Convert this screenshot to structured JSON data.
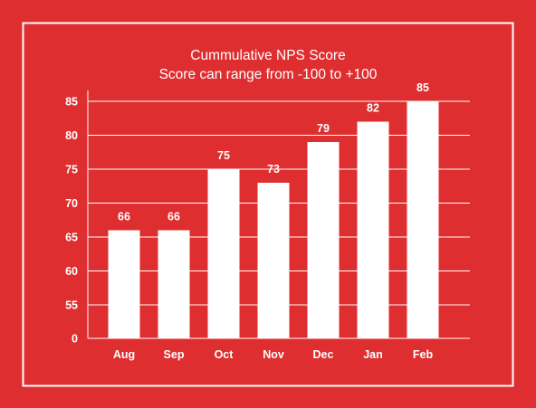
{
  "colors": {
    "background": "#de2e30",
    "foreground": "#ffffff"
  },
  "chart_data": {
    "type": "bar",
    "title": "Cummulative NPS Score",
    "subtitle": "Score can range from -100 to +100",
    "categories": [
      "Aug",
      "Sep",
      "Oct",
      "Nov",
      "Dec",
      "Jan",
      "Feb"
    ],
    "values": [
      66,
      66,
      75,
      73,
      79,
      82,
      85
    ],
    "data_labels": [
      "66",
      "66",
      "75",
      "73",
      "79",
      "82",
      "85"
    ],
    "y_ticks": [
      85,
      80,
      75,
      70,
      65,
      60,
      55,
      0
    ],
    "y_tick_labels": [
      "85",
      "80",
      "75",
      "70",
      "65",
      "60",
      "55",
      "0"
    ],
    "y_axis_break": true,
    "grid": true,
    "legend": "none"
  }
}
